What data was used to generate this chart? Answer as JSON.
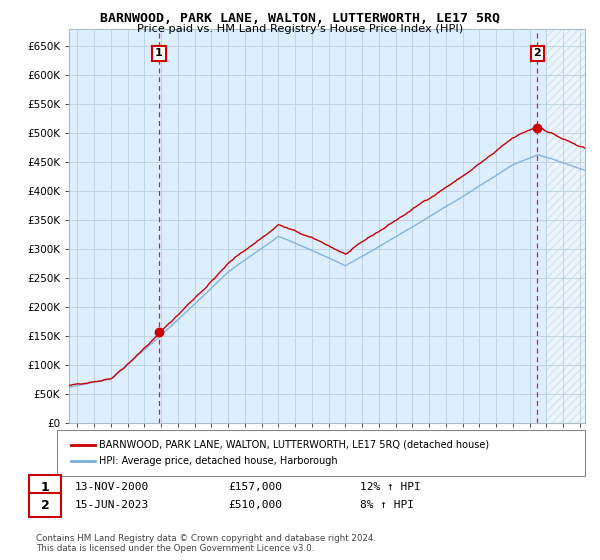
{
  "title": "BARNWOOD, PARK LANE, WALTON, LUTTERWORTH, LE17 5RQ",
  "subtitle": "Price paid vs. HM Land Registry's House Price Index (HPI)",
  "ytick_values": [
    0,
    50000,
    100000,
    150000,
    200000,
    250000,
    300000,
    350000,
    400000,
    450000,
    500000,
    550000,
    600000,
    650000
  ],
  "ylim": [
    0,
    680000
  ],
  "xlim_start": 1995.5,
  "xlim_end": 2026.3,
  "purchase1_x": 2000.87,
  "purchase1_y": 157000,
  "purchase2_x": 2023.46,
  "purchase2_y": 510000,
  "purchase1_date": "13-NOV-2000",
  "purchase1_price": "£157,000",
  "purchase1_hpi": "12% ↑ HPI",
  "purchase2_date": "15-JUN-2023",
  "purchase2_price": "£510,000",
  "purchase2_hpi": "8% ↑ HPI",
  "legend_line1": "BARNWOOD, PARK LANE, WALTON, LUTTERWORTH, LE17 5RQ (detached house)",
  "legend_line2": "HPI: Average price, detached house, Harborough",
  "footnote": "Contains HM Land Registry data © Crown copyright and database right 2024.\nThis data is licensed under the Open Government Licence v3.0.",
  "line_color_red": "#cc0000",
  "line_color_blue": "#7aaedc",
  "marker_color_red": "#cc0000",
  "bg_color": "#ffffff",
  "plot_bg_color": "#ddeeff",
  "grid_color": "#b8cfe0",
  "hatch_color": "#c8d8e8"
}
